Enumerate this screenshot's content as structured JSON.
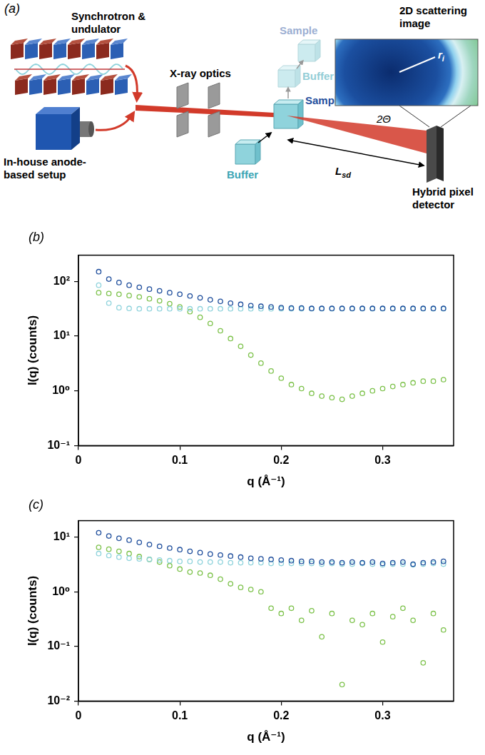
{
  "diagram": {
    "panel": "(a)",
    "source_synchrotron": [
      "Synchrotron &",
      "undulator"
    ],
    "source_inhouse": [
      "In-house anode-",
      "based setup"
    ],
    "optics": "X-ray optics",
    "sample": "Sample",
    "buffer": "Buffer",
    "exchange_sample": "Sample",
    "exchange_buffer": "Buffer",
    "angle": "2Θ",
    "distance": {
      "text": "L",
      "sub": "sd"
    },
    "detector": [
      "Hybrid pixel",
      "detector"
    ],
    "image": [
      "2D scattering",
      "image"
    ],
    "radius": {
      "text": "r",
      "sub": "i"
    }
  },
  "chart_data": [
    {
      "panel": "(b)",
      "type": "scatter",
      "x_label": "q (Å⁻¹)",
      "y_label": "I(q) (counts)",
      "log": "y",
      "grid": false,
      "marker": "circle",
      "x": [
        0.02,
        0.03,
        0.04,
        0.05,
        0.06,
        0.07,
        0.08,
        0.09,
        0.1,
        0.11,
        0.12,
        0.13,
        0.14,
        0.15,
        0.16,
        0.17,
        0.18,
        0.19,
        0.2,
        0.21,
        0.22,
        0.23,
        0.24,
        0.25,
        0.26,
        0.27,
        0.28,
        0.29,
        0.3,
        0.31,
        0.32,
        0.33,
        0.34,
        0.35,
        0.36
      ],
      "xlim": [
        0,
        0.37
      ],
      "xticks": [
        0,
        0.1,
        0.2,
        0.3
      ],
      "ylim": [
        0.1,
        300
      ],
      "yticks": [
        {
          "value": 0.1,
          "label": "10⁻¹"
        },
        {
          "value": 1,
          "label": "10⁰"
        },
        {
          "value": 10,
          "label": "10¹"
        },
        {
          "value": 100,
          "label": "10²"
        }
      ],
      "series": [
        {
          "color": "#1f4e9c",
          "values": [
            150,
            110,
            95,
            85,
            78,
            72,
            67,
            62,
            58,
            54,
            50,
            46,
            43,
            40,
            38,
            36,
            35,
            34,
            33,
            32.5,
            32.5,
            32,
            32,
            32,
            32,
            32,
            32,
            32,
            32,
            32,
            32,
            32,
            32,
            32,
            32
          ]
        },
        {
          "color": "#8fd3dc",
          "values": [
            85,
            40,
            33,
            32,
            31.5,
            31.5,
            31.5,
            31.5,
            31.5,
            31.5,
            31.5,
            31.5,
            31.5,
            31.5,
            31.5,
            31.5,
            31.5,
            31.5,
            31.5,
            31.5,
            31.5,
            31.5,
            31.5,
            31.5,
            31.5,
            31.5,
            31.5,
            31.5,
            31.5,
            31.5,
            31.5,
            31.5,
            31.5,
            31.5,
            31.5
          ]
        },
        {
          "color": "#7dc24b",
          "values": [
            62,
            60,
            58,
            55,
            52,
            48,
            44,
            39,
            34,
            28,
            22,
            17,
            12.5,
            9,
            6.5,
            4.5,
            3.2,
            2.3,
            1.7,
            1.3,
            1.1,
            0.9,
            0.8,
            0.75,
            0.7,
            0.8,
            0.9,
            1.0,
            1.1,
            1.2,
            1.3,
            1.4,
            1.5,
            1.5,
            1.6
          ]
        }
      ]
    },
    {
      "panel": "(c)",
      "type": "scatter",
      "x_label": "q (Å⁻¹)",
      "y_label": "I(q) (counts)",
      "log": "y",
      "grid": false,
      "marker": "circle",
      "x": [
        0.02,
        0.03,
        0.04,
        0.05,
        0.06,
        0.07,
        0.08,
        0.09,
        0.1,
        0.11,
        0.12,
        0.13,
        0.14,
        0.15,
        0.16,
        0.17,
        0.18,
        0.19,
        0.2,
        0.21,
        0.22,
        0.23,
        0.24,
        0.25,
        0.26,
        0.27,
        0.28,
        0.29,
        0.3,
        0.31,
        0.32,
        0.33,
        0.34,
        0.35,
        0.36
      ],
      "xlim": [
        0,
        0.37
      ],
      "xticks": [
        0,
        0.1,
        0.2,
        0.3
      ],
      "ylim": [
        0.01,
        20
      ],
      "yticks": [
        {
          "value": 0.01,
          "label": "10⁻²"
        },
        {
          "value": 0.1,
          "label": "10⁻¹"
        },
        {
          "value": 1,
          "label": "10⁰"
        },
        {
          "value": 10,
          "label": "10¹"
        }
      ],
      "series": [
        {
          "color": "#1f4e9c",
          "values": [
            12,
            10.5,
            9.5,
            8.8,
            8,
            7.3,
            6.8,
            6.3,
            5.9,
            5.5,
            5.2,
            4.9,
            4.7,
            4.5,
            4.3,
            4.1,
            4.0,
            3.9,
            3.8,
            3.7,
            3.6,
            3.6,
            3.5,
            3.5,
            3.4,
            3.5,
            3.4,
            3.5,
            3.3,
            3.4,
            3.5,
            3.2,
            3.4,
            3.5,
            3.6
          ]
        },
        {
          "color": "#8fd3dc",
          "values": [
            5,
            4.6,
            4.3,
            4.1,
            4.0,
            3.9,
            3.8,
            3.7,
            3.6,
            3.6,
            3.5,
            3.5,
            3.5,
            3.4,
            3.4,
            3.4,
            3.4,
            3.3,
            3.3,
            3.3,
            3.3,
            3.3,
            3.2,
            3.3,
            3.2,
            3.2,
            3.3,
            3.2,
            3.1,
            3.2,
            3.2,
            3.1,
            3.2,
            3.3,
            3.2
          ]
        },
        {
          "color": "#7dc24b",
          "values": [
            6.5,
            6,
            5.5,
            5,
            4.4,
            3.9,
            3.5,
            3.0,
            2.6,
            2.3,
            2.2,
            2.0,
            1.7,
            1.4,
            1.2,
            1.1,
            1.0,
            0.5,
            0.4,
            0.5,
            0.3,
            0.45,
            0.15,
            0.4,
            0.02,
            0.3,
            0.25,
            0.4,
            0.12,
            0.35,
            0.5,
            0.3,
            0.05,
            0.4,
            0.2
          ]
        }
      ]
    }
  ]
}
